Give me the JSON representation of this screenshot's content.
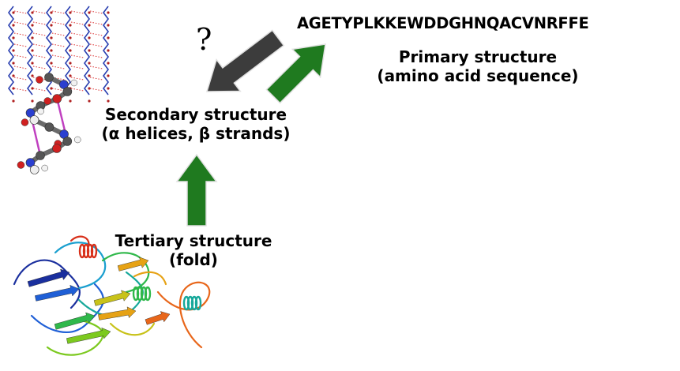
{
  "primary": {
    "sequence": "AGETYPLKKEWDDGHNQACVNRFFE",
    "title": "Primary structure",
    "subtitle": "(amino acid sequence)"
  },
  "secondary": {
    "title": "Secondary structure",
    "subtitle": "(α helices, β strands)"
  },
  "tertiary": {
    "title": "Tertiary structure",
    "subtitle": "(fold)"
  },
  "question_mark": "?",
  "colors": {
    "arrow_green": "#1f7a1f",
    "arrow_gray": "#3c3c3c",
    "arrow_outline": "#e0e0e0",
    "h_bond": "#d93030",
    "backbone_blue": "#2a3fb0",
    "helix_carbon": "#6a6a6a",
    "helix_bond": "#c040c0"
  },
  "icons": {
    "secondary_image": "beta-sheet-and-helix-molecular-model-icon",
    "tertiary_image": "protein-ribbon-fold-icon",
    "arrow_primary_to_secondary": "gray-diagonal-arrow-icon",
    "arrow_secondary_to_primary": "green-diagonal-arrow-icon",
    "arrow_tertiary_to_secondary": "green-up-arrow-icon"
  }
}
